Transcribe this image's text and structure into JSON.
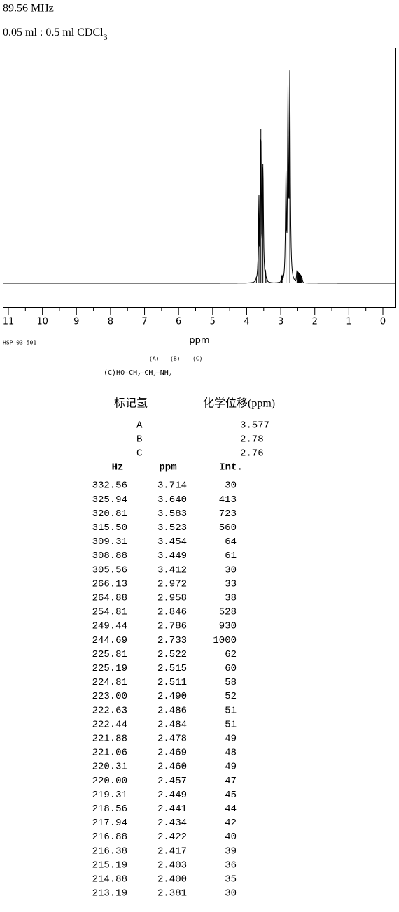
{
  "header": {
    "frequency": "89.56 MHz",
    "sample": "0.05 ml : 0.5 ml CDCl",
    "sample_subscript": "3"
  },
  "chart_data": {
    "type": "spectrum",
    "xlabel": "ppm",
    "code": "HSP-03-501",
    "xlim": [
      11,
      0
    ],
    "xticks": [
      11,
      10,
      9,
      8,
      7,
      6,
      5,
      4,
      3,
      2,
      1,
      0
    ]
  },
  "structure": {
    "labels": [
      "(A)",
      "(B)",
      "(C)"
    ],
    "formula": [
      "(C)HO—CH",
      "2",
      "—CH",
      "2",
      "—NH",
      "2"
    ]
  },
  "assignments": {
    "headers": [
      "标记氢",
      "化学位移(ppm)"
    ],
    "rows": [
      [
        "A",
        "3.577"
      ],
      [
        "B",
        "2.78"
      ],
      [
        "C",
        "2.76"
      ]
    ]
  },
  "peaks": {
    "headers": [
      "Hz",
      "ppm",
      "Int."
    ],
    "rows": [
      [
        "332.56",
        "3.714",
        "30"
      ],
      [
        "325.94",
        "3.640",
        "413"
      ],
      [
        "320.81",
        "3.583",
        "723"
      ],
      [
        "315.50",
        "3.523",
        "560"
      ],
      [
        "309.31",
        "3.454",
        "64"
      ],
      [
        "308.88",
        "3.449",
        "61"
      ],
      [
        "305.56",
        "3.412",
        "30"
      ],
      [
        "266.13",
        "2.972",
        "33"
      ],
      [
        "264.88",
        "2.958",
        "38"
      ],
      [
        "254.81",
        "2.846",
        "528"
      ],
      [
        "249.44",
        "2.786",
        "930"
      ],
      [
        "244.69",
        "2.733",
        "1000"
      ],
      [
        "225.81",
        "2.522",
        "62"
      ],
      [
        "225.19",
        "2.515",
        "60"
      ],
      [
        "224.81",
        "2.511",
        "58"
      ],
      [
        "223.00",
        "2.490",
        "52"
      ],
      [
        "222.63",
        "2.486",
        "51"
      ],
      [
        "222.44",
        "2.484",
        "51"
      ],
      [
        "221.88",
        "2.478",
        "49"
      ],
      [
        "221.06",
        "2.469",
        "48"
      ],
      [
        "220.31",
        "2.460",
        "49"
      ],
      [
        "220.00",
        "2.457",
        "47"
      ],
      [
        "219.31",
        "2.449",
        "45"
      ],
      [
        "218.56",
        "2.441",
        "44"
      ],
      [
        "217.94",
        "2.434",
        "42"
      ],
      [
        "216.88",
        "2.422",
        "40"
      ],
      [
        "216.38",
        "2.417",
        "39"
      ],
      [
        "215.19",
        "2.403",
        "36"
      ],
      [
        "214.88",
        "2.400",
        "35"
      ],
      [
        "213.19",
        "2.381",
        "30"
      ]
    ]
  }
}
